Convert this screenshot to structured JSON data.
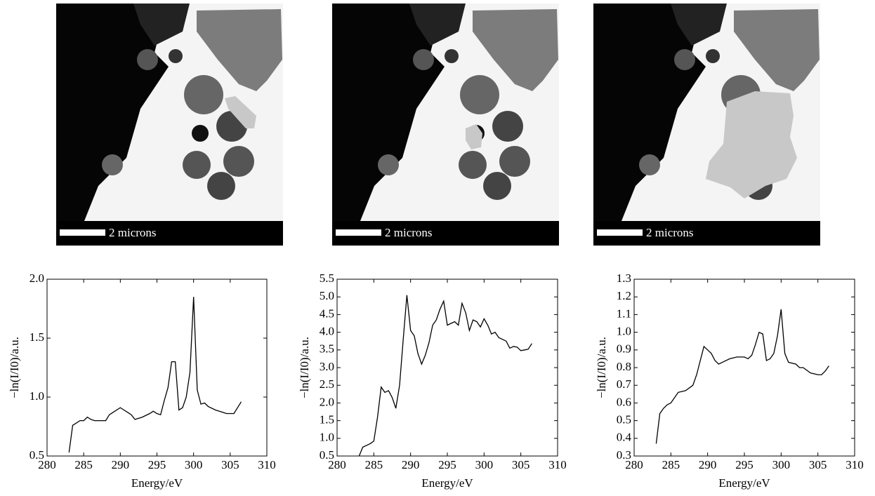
{
  "images": [
    {
      "scale_label": "2 microns"
    },
    {
      "scale_label": "2 microns"
    },
    {
      "scale_label": "2 microns"
    }
  ],
  "chart_data": [
    {
      "type": "line",
      "xlabel": "Energy/eV",
      "ylabel": "−ln(I/I0)/a.u.",
      "color": "#000000",
      "x": [
        283,
        283.5,
        284.5,
        285,
        285.5,
        286,
        286.5,
        287,
        288,
        288.5,
        289,
        290,
        290.5,
        291,
        291.5,
        292,
        292.5,
        293,
        294,
        294.5,
        295,
        295.5,
        296,
        296.5,
        297,
        297.5,
        298,
        298.5,
        299,
        299.5,
        300,
        300.5,
        301,
        301.5,
        302,
        303,
        304,
        304.5,
        305,
        305.5,
        306.5
      ],
      "values": [
        0.53,
        0.76,
        0.8,
        0.8,
        0.83,
        0.81,
        0.8,
        0.8,
        0.8,
        0.85,
        0.87,
        0.91,
        0.89,
        0.87,
        0.85,
        0.81,
        0.82,
        0.83,
        0.86,
        0.88,
        0.86,
        0.85,
        0.97,
        1.08,
        1.3,
        1.3,
        0.89,
        0.91,
        1.0,
        1.21,
        1.85,
        1.06,
        0.94,
        0.95,
        0.92,
        0.89,
        0.87,
        0.86,
        0.86,
        0.86,
        0.96
      ],
      "xlim": [
        280,
        310
      ],
      "xticks": [
        280,
        285,
        290,
        295,
        300,
        305,
        310
      ],
      "ylim": [
        0.5,
        2.0
      ],
      "yticks": [
        0.5,
        {
          "value": 1,
          "label": "1.0"
        },
        1.5,
        {
          "value": 2,
          "label": "2.0"
        }
      ]
    },
    {
      "type": "line",
      "xlabel": "Energy/eV",
      "ylabel": "−ln(I/I0)/a.u.",
      "color": "#000000",
      "x": [
        283,
        283.5,
        284.5,
        285,
        285.5,
        286,
        286.5,
        287,
        287.5,
        288,
        288.5,
        289,
        289.5,
        290,
        290.5,
        291,
        291.5,
        292,
        292.5,
        293,
        293.5,
        294,
        294.5,
        295,
        295.5,
        296,
        296.5,
        297,
        297.5,
        298,
        298.5,
        299,
        299.5,
        300,
        300.5,
        301,
        301.5,
        302,
        303,
        303.5,
        304,
        304.5,
        305,
        305.5,
        306,
        306.5
      ],
      "values": [
        0.5,
        0.75,
        0.85,
        0.92,
        1.6,
        2.45,
        2.3,
        2.35,
        2.15,
        1.85,
        2.5,
        3.8,
        5.05,
        4.05,
        3.9,
        3.4,
        3.1,
        3.35,
        3.7,
        4.2,
        4.35,
        4.65,
        4.88,
        4.2,
        4.25,
        4.3,
        4.2,
        4.82,
        4.55,
        4.05,
        4.35,
        4.3,
        4.15,
        4.38,
        4.2,
        3.95,
        4.0,
        3.85,
        3.75,
        3.55,
        3.6,
        3.58,
        3.48,
        3.5,
        3.52,
        3.68
      ],
      "xlim": [
        280,
        310
      ],
      "xticks": [
        280,
        285,
        290,
        295,
        300,
        305,
        310
      ],
      "ylim": [
        0.5,
        5.5
      ],
      "yticks": [
        0.5,
        {
          "value": 1,
          "label": "1.0"
        },
        1.5,
        {
          "value": 2,
          "label": "2.0"
        },
        2.5,
        {
          "value": 3,
          "label": "3.0"
        },
        3.5,
        {
          "value": 4,
          "label": "4.0"
        },
        4.5,
        {
          "value": 5,
          "label": "5.0"
        },
        5.5
      ]
    },
    {
      "type": "line",
      "xlabel": "Energy/eV",
      "ylabel": "−ln(I/I0)/a.u.",
      "color": "#000000",
      "x": [
        283,
        283.5,
        284,
        284.5,
        285,
        285.5,
        286,
        287,
        288,
        288.5,
        289,
        289.5,
        290,
        290.5,
        291,
        291.5,
        292,
        293,
        294,
        295,
        295.5,
        296,
        296.5,
        297,
        297.5,
        298,
        298.5,
        299,
        299.5,
        300,
        300.5,
        301,
        302,
        302.5,
        303,
        304,
        305,
        305.5,
        306,
        306.5
      ],
      "values": [
        0.37,
        0.54,
        0.57,
        0.59,
        0.6,
        0.63,
        0.66,
        0.67,
        0.7,
        0.76,
        0.84,
        0.92,
        0.9,
        0.88,
        0.84,
        0.82,
        0.83,
        0.85,
        0.86,
        0.86,
        0.85,
        0.87,
        0.93,
        1.0,
        0.99,
        0.84,
        0.85,
        0.88,
        0.98,
        1.13,
        0.88,
        0.83,
        0.82,
        0.8,
        0.8,
        0.77,
        0.76,
        0.76,
        0.78,
        0.81
      ],
      "xlim": [
        280,
        310
      ],
      "xticks": [
        280,
        285,
        290,
        295,
        300,
        305,
        310
      ],
      "ylim": [
        0.3,
        1.3
      ],
      "yticks": [
        0.3,
        0.4,
        0.5,
        0.6,
        0.7,
        0.8,
        0.9,
        {
          "value": 1,
          "label": "1.0"
        },
        1.1,
        1.2,
        1.3
      ]
    }
  ]
}
